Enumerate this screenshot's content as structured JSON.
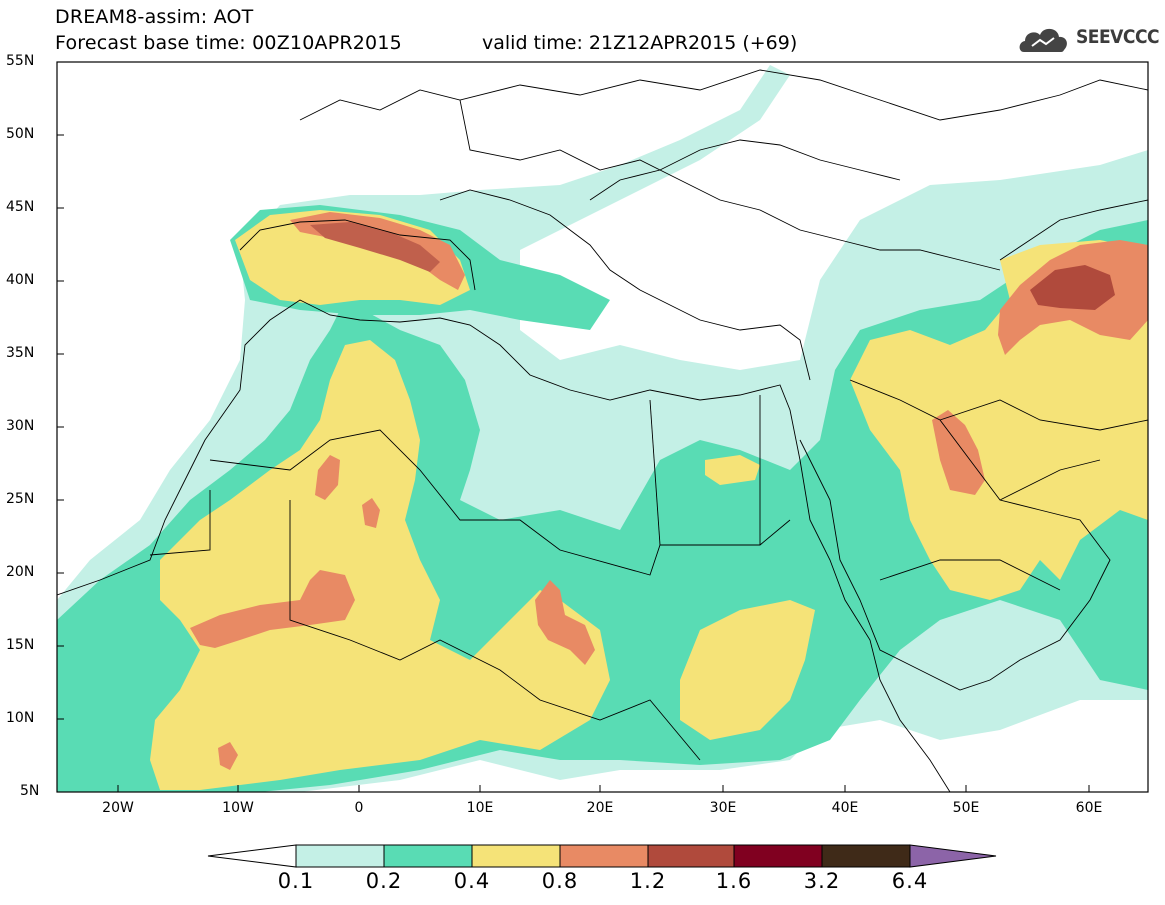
{
  "title": {
    "line1": "DREAM8-assim: AOT",
    "line2": "Forecast base time: 00Z10APR2015",
    "valid": "valid time: 21Z12APR2015 (+69)"
  },
  "logo": {
    "icon": "cloud-icon",
    "text": "SEEVCCC"
  },
  "map": {
    "variable": "AOT",
    "lat_labels": [
      "55N",
      "50N",
      "45N",
      "40N",
      "35N",
      "30N",
      "25N",
      "20N",
      "15N",
      "10N",
      "5N"
    ],
    "lon_labels": [
      "20W",
      "10W",
      "0",
      "10E",
      "20E",
      "30E",
      "40E",
      "50E",
      "60E"
    ]
  },
  "colorbar": {
    "labels": [
      "0.1",
      "0.2",
      "0.4",
      "0.8",
      "1.2",
      "1.6",
      "3.2",
      "6.4"
    ],
    "colors": [
      "#ffffff",
      "#c4f0e6",
      "#59dcb4",
      "#f5e378",
      "#e88a64",
      "#b04a3c",
      "#800020",
      "#3f2a18",
      "#8c64a8"
    ]
  }
}
